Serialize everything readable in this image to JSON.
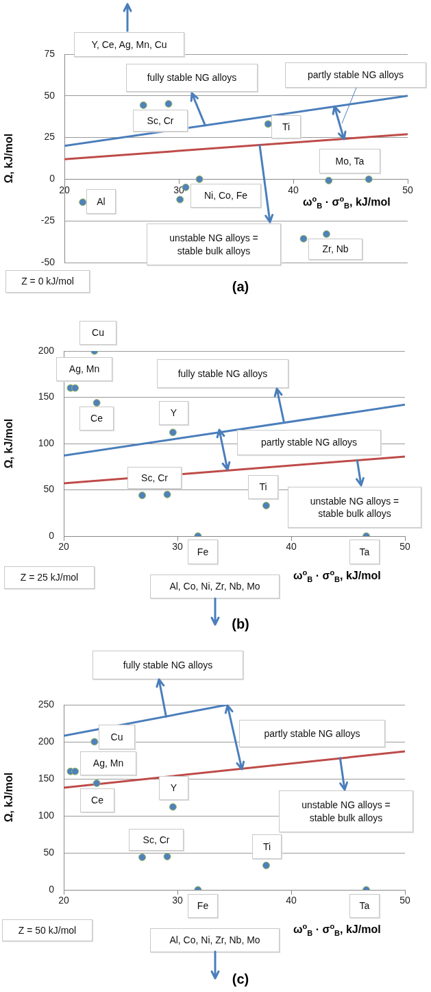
{
  "chart_data": [
    {
      "type": "scatter",
      "title": "(a)",
      "xlabel": "ω$^{o}$$_{B}$ · σ$^{o}$$_{B}$, kJ/mol",
      "ylabel": "Ω, kJ/mol",
      "xlim": [
        20,
        50
      ],
      "xticks": [
        20,
        30,
        40,
        50
      ],
      "ylim": [
        -50,
        75
      ],
      "yticks": [
        -50,
        -25,
        0,
        25,
        50,
        75
      ],
      "grid": "y",
      "legend": false,
      "series": [
        {
          "type": "scatter",
          "color": "#4f81bd",
          "marker": "circle",
          "x": [
            26.9,
            29.1,
            37.8,
            31.8,
            30.6,
            30.1,
            21.6,
            43.1,
            46.6,
            40.9,
            42.9
          ],
          "values": [
            44.4,
            45.2,
            33.1,
            0,
            -4.9,
            -12.2,
            -13.8,
            -0.8,
            0,
            -35.7,
            -32.9
          ]
        },
        {
          "type": "line",
          "color": "#4a7ebb",
          "marker": "none",
          "x": [
            20,
            50
          ],
          "values": [
            20,
            50
          ]
        },
        {
          "type": "line",
          "color": "#be4b48",
          "marker": "none",
          "x": [
            20,
            50
          ],
          "values": [
            12,
            27
          ]
        }
      ],
      "annotations": [
        "Y, Ce, Ag, Mn, Cu",
        {
          "text": "fully stable NG alloys",
          "x": 32.3,
          "y": 32.3
        },
        {
          "text": "partly stable NG alloys",
          "x": 43.6,
          "y": 43.6
        },
        "Sc, Cr",
        "Ti",
        "Mo, Ta",
        "Al",
        "Ni, Co, Fe",
        "unstable NG alloys =\nstable bulk alloys",
        "Zr, Nb",
        "Z = 0 kJ/mol"
      ]
    },
    {
      "type": "scatter",
      "title": "(b)",
      "xlabel": "ω$^{o}$$_{B}$ · σ$^{o}$$_{B}$, kJ/mol",
      "ylabel": "Ω, kJ/mol",
      "xlim": [
        20,
        50
      ],
      "xticks": [
        20,
        30,
        40,
        50
      ],
      "ylim": [
        0,
        200
      ],
      "yticks": [
        0,
        50,
        100,
        150,
        200
      ],
      "grid": "y",
      "legend": false,
      "series": [
        {
          "type": "scatter",
          "color": "#4f81bd",
          "marker": "circle",
          "x": [
            22.7,
            20.6,
            21.0,
            22.9,
            29.6,
            26.9,
            29.1,
            37.8,
            31.8,
            46.6
          ],
          "values": [
            200,
            160,
            160,
            144,
            112,
            44,
            45,
            33,
            0,
            0
          ]
        },
        {
          "type": "line",
          "color": "#4a7ebb",
          "marker": "none",
          "x": [
            20,
            50
          ],
          "values": [
            87,
            142
          ]
        },
        {
          "type": "line",
          "color": "#be4b48",
          "marker": "none",
          "x": [
            20,
            50
          ],
          "values": [
            57,
            86
          ]
        }
      ],
      "annotations": [
        "Cu",
        "Ag, Mn",
        "Ce",
        "fully stable NG alloys",
        "Y",
        "partly stable NG alloys",
        "Sc, Cr",
        "Ti",
        {
          "text": "unstable NG alloys =\nstable bulk alloys",
          "x": 45.8,
          "y": 82
        },
        "Fe",
        "Ta",
        "Z = 25 kJ/mol",
        "Al, Co, Ni, Zr, Nb, Mo"
      ]
    },
    {
      "type": "scatter",
      "title": "(c)",
      "xlabel": "ω$^{o}$$_{B}$ · σ$^{o}$$_{B}$, kJ/mol",
      "ylabel": "Ω, kJ/mol",
      "xlim": [
        20,
        50
      ],
      "xticks": [
        20,
        30,
        40,
        50
      ],
      "ylim": [
        0,
        250
      ],
      "yticks": [
        0,
        50,
        100,
        150,
        200,
        250
      ],
      "grid": "y",
      "legend": false,
      "series": [
        {
          "type": "scatter",
          "color": "#4f81bd",
          "marker": "circle",
          "x": [
            22.7,
            20.6,
            21.0,
            22.9,
            29.6,
            26.9,
            29.1,
            37.8,
            31.8,
            46.6
          ],
          "values": [
            200,
            160,
            160,
            144,
            112,
            44,
            45,
            33,
            0,
            0
          ]
        },
        {
          "type": "line",
          "color": "#4a7ebb",
          "marker": "none",
          "x": [
            20,
            34.4
          ],
          "values": [
            208,
            250
          ]
        },
        {
          "type": "line",
          "color": "#be4b48",
          "marker": "none",
          "x": [
            20,
            50
          ],
          "values": [
            138,
            187
          ]
        }
      ],
      "annotations": [
        {
          "text": "fully stable NG alloys",
          "x": 29,
          "y": 234
        },
        "Cu",
        "partly stable NG alloys",
        "Ag, Mn",
        "Y",
        "Ce",
        {
          "text": "unstable NG alloys =\nstable bulk alloys",
          "x": 44.3,
          "y": 178
        },
        "Sc, Cr",
        "Ti",
        "Fe",
        "Ta",
        "Z = 50 kJ/mol",
        "Al, Co, Ni, Zr, Nb, Mo"
      ]
    }
  ]
}
